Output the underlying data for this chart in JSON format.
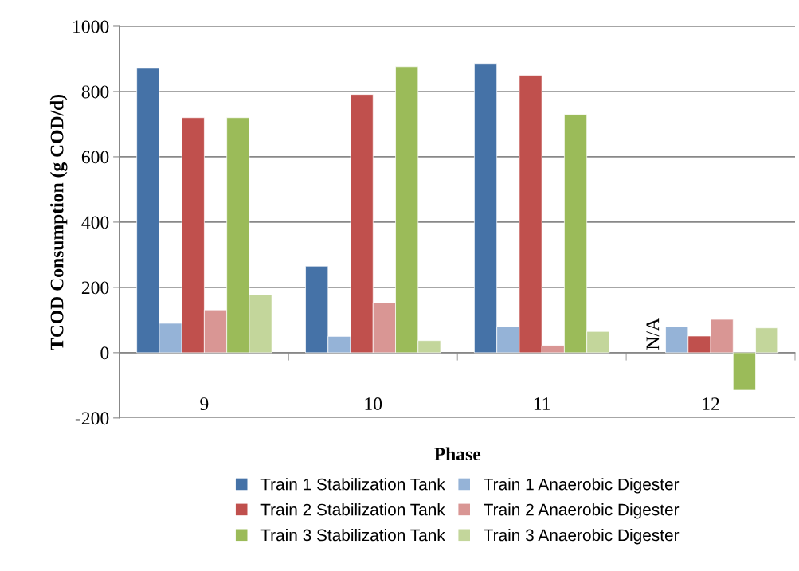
{
  "chart_data": {
    "type": "bar",
    "xlabel": "Phase",
    "ylabel": "TCOD Consumption (g COD/d)",
    "categories": [
      "9",
      "10",
      "11",
      "12"
    ],
    "series": [
      {
        "name": "Train 1 Stabilization Tank",
        "color": "#4572a7",
        "values": [
          871,
          265,
          886,
          null
        ]
      },
      {
        "name": "Train 1 Anaerobic Digester",
        "color": "#95b3d7",
        "values": [
          90,
          50,
          80,
          80
        ]
      },
      {
        "name": "Train 2 Stabilization Tank",
        "color": "#c0504d",
        "values": [
          720,
          791,
          850,
          51
        ]
      },
      {
        "name": "Train 2 Anaerobic Digester",
        "color": "#d99694",
        "values": [
          131,
          153,
          22,
          102
        ]
      },
      {
        "name": "Train 3 Stabilization Tank",
        "color": "#9bbb59",
        "values": [
          720,
          876,
          730,
          -115
        ]
      },
      {
        "name": "Train 3 Anaerobic Digester",
        "color": "#c3d69b",
        "values": [
          178,
          37,
          65,
          76
        ]
      }
    ],
    "ylim": [
      -200,
      1000
    ],
    "yticks": [
      -200,
      0,
      200,
      400,
      600,
      800,
      1000
    ],
    "grid": "y",
    "legend": "bottom",
    "annotations": [
      {
        "text": "N/A",
        "x": "12",
        "y": 0
      }
    ]
  }
}
